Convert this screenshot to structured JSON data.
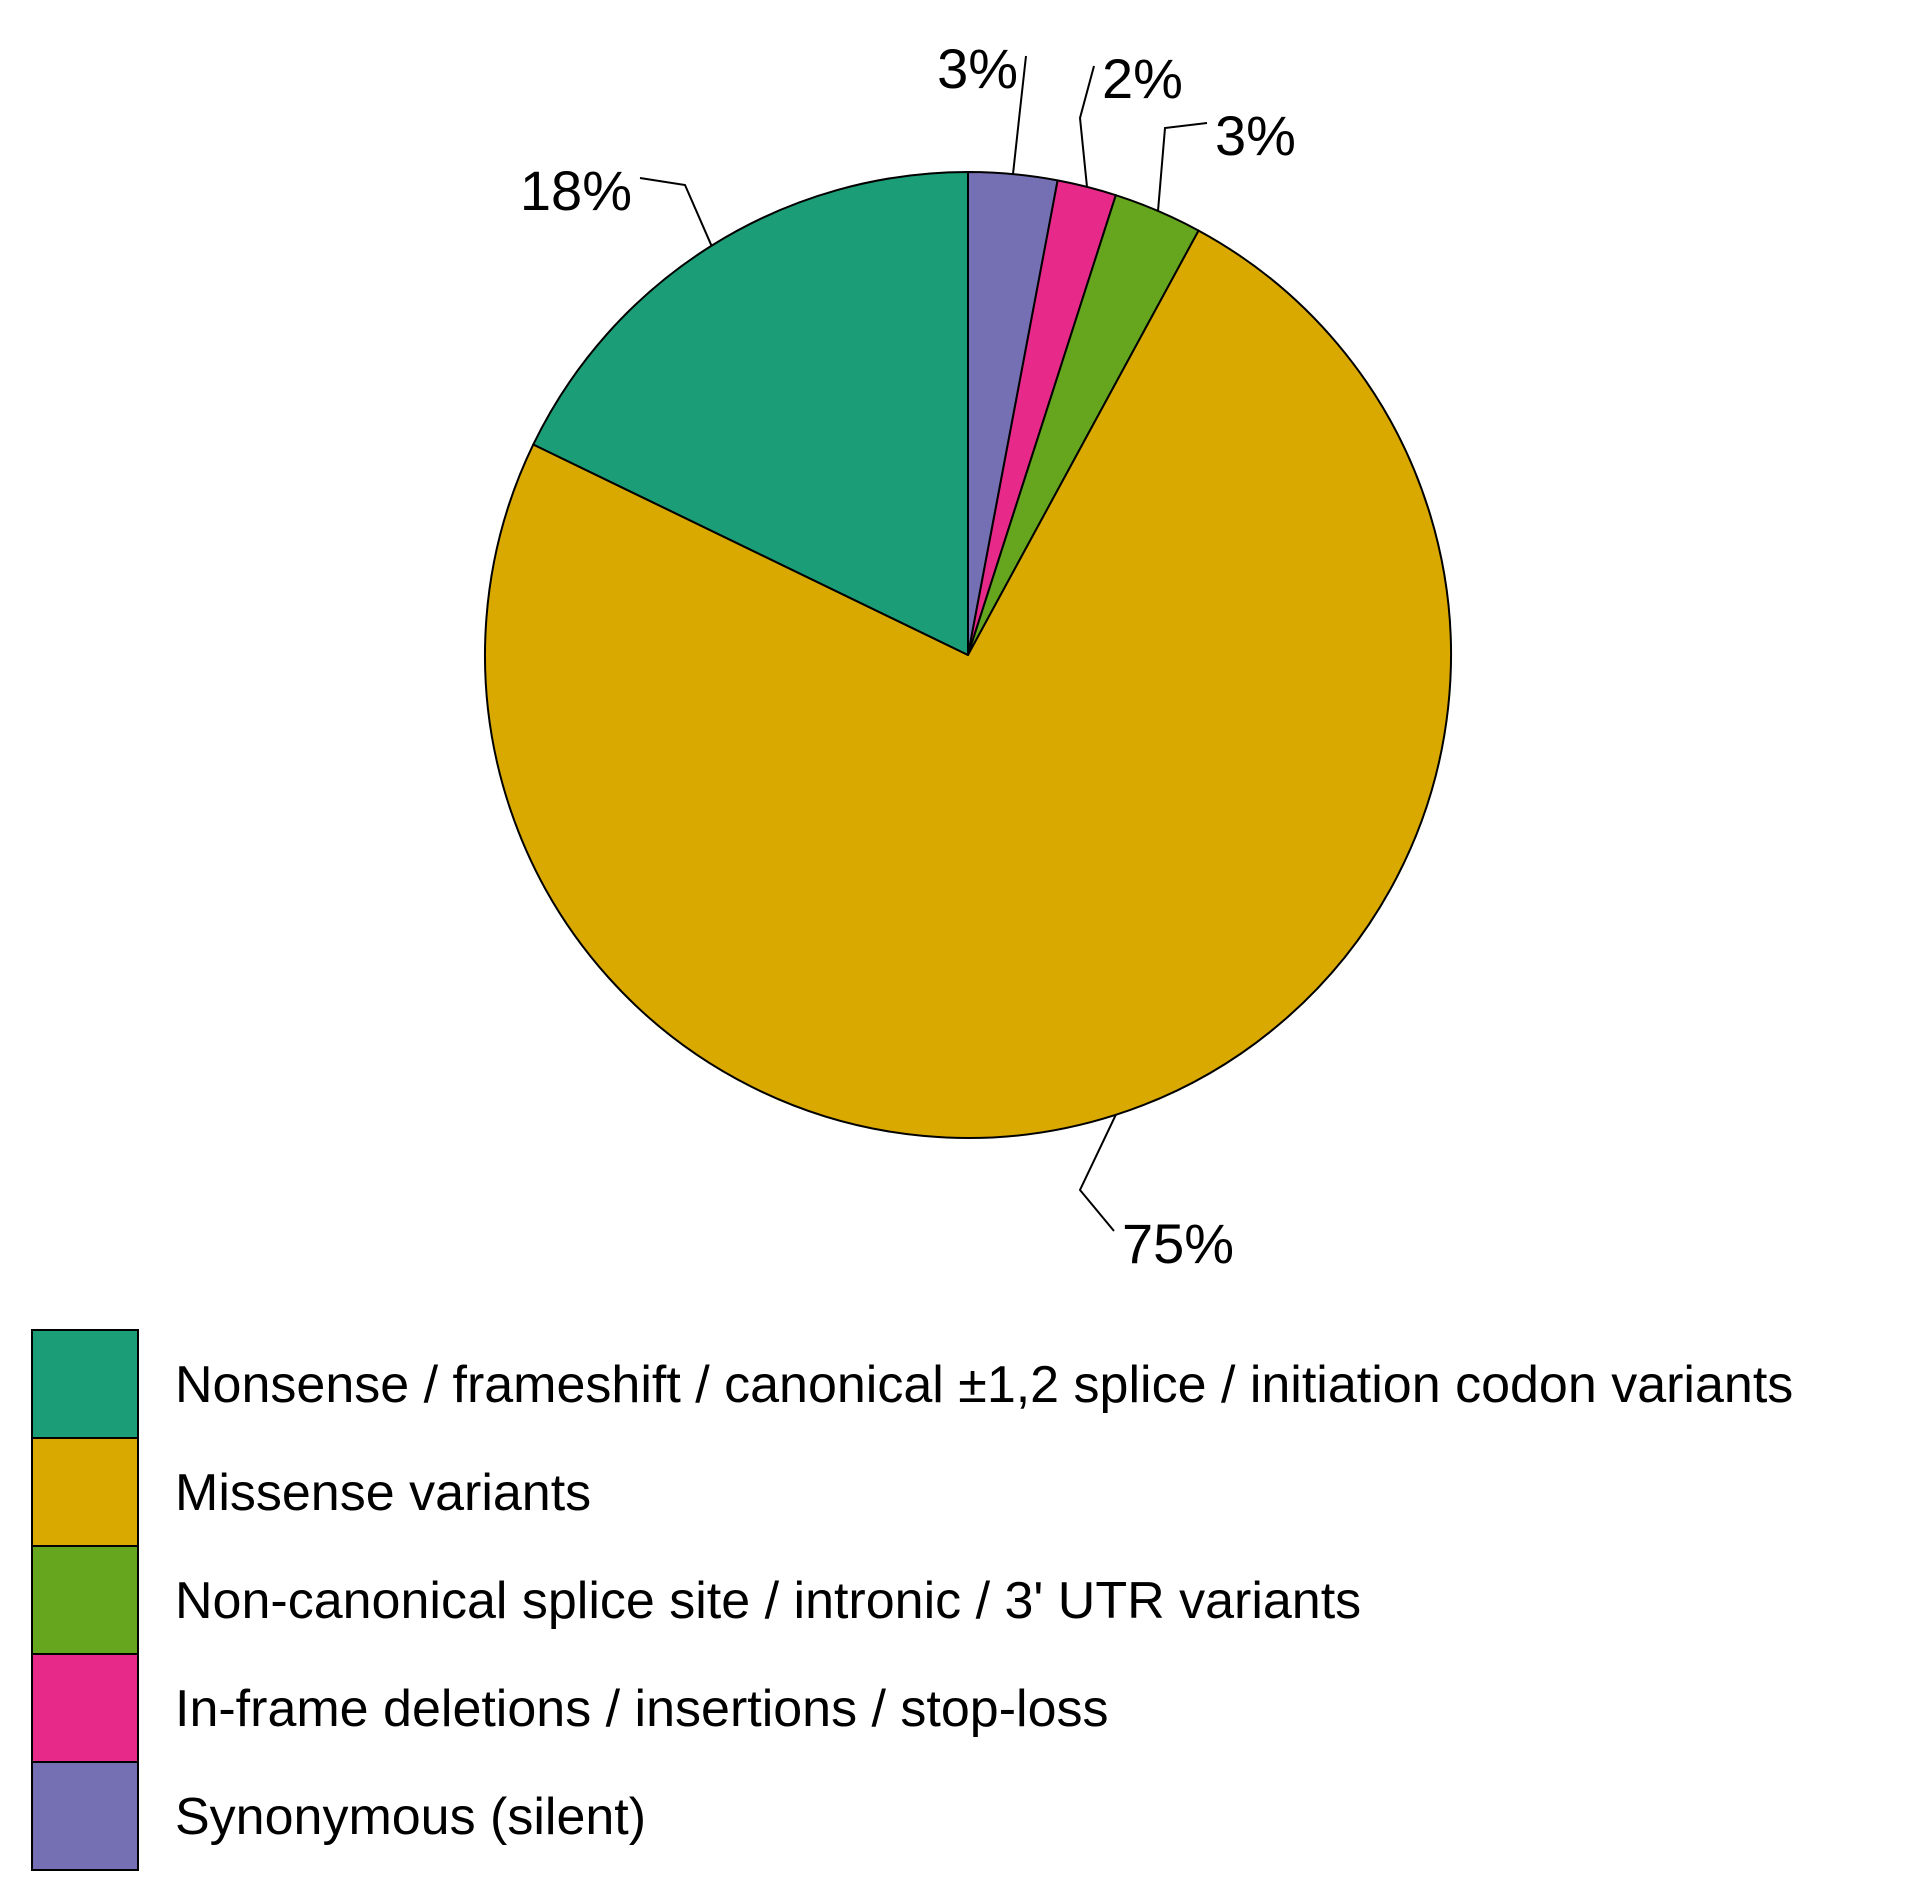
{
  "chart_data": {
    "type": "pie",
    "slices": [
      {
        "label": "Synonymous (silent)",
        "value": 3,
        "display": "3%",
        "color": "#7570b3"
      },
      {
        "label": "In-frame deletions / insertions / stop-loss",
        "value": 2,
        "display": "2%",
        "color": "#e7298a"
      },
      {
        "label": "Non-canonical splice site / intronic / 3' UTR variants",
        "value": 3,
        "display": "3%",
        "color": "#66a61e"
      },
      {
        "label": "Missense variants",
        "value": 75,
        "display": "75%",
        "color": "#d9a900"
      },
      {
        "label": "Nonsense / frameshift / canonical ±1,2 splice / initiation codon variants",
        "value": 18,
        "display": "18%",
        "color": "#1b9e77"
      }
    ],
    "legend": {
      "placement": "bottom",
      "entries": [
        {
          "label": "Nonsense / frameshift / canonical ±1,2 splice / initiation codon variants",
          "color": "#1b9e77"
        },
        {
          "label": "Missense variants",
          "color": "#d9a900"
        },
        {
          "label": "Non-canonical splice site / intronic / 3' UTR variants",
          "color": "#66a61e"
        },
        {
          "label": "In-frame deletions / insertions / stop-loss",
          "color": "#e7298a"
        },
        {
          "label": "Synonymous (silent)",
          "color": "#7570b3"
        }
      ]
    }
  }
}
